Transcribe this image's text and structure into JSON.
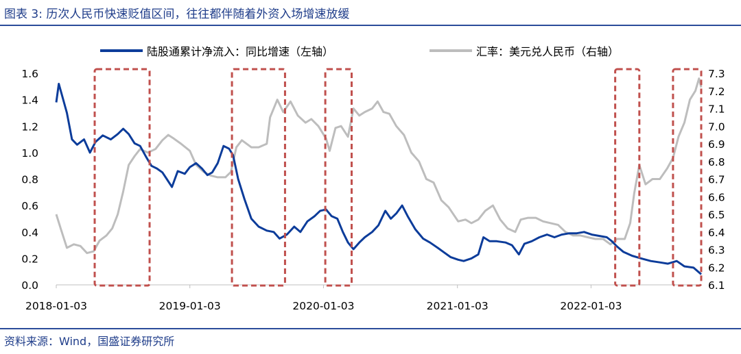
{
  "figure": {
    "title": "图表 3:  历次人民币快速贬值区间，往往都伴随着外资入场增速放缓",
    "source": "资料来源：Wind，国盛证券研究所"
  },
  "colors": {
    "series_1": "#0c3c9a",
    "series_2": "#bdbdbd",
    "highlight_box": "#c0504d",
    "rule": "#2a4c9a"
  },
  "chart_data": {
    "type": "line",
    "x_tick_labels": [
      "2018-01-03",
      "2019-01-03",
      "2020-01-03",
      "2021-01-03",
      "2022-01-03"
    ],
    "x_range": [
      "2018-01-03",
      "2022-10-31"
    ],
    "y_left": {
      "range": [
        0.0,
        1.6
      ],
      "ticks": [
        "0.0",
        "0.2",
        "0.4",
        "0.6",
        "0.8",
        "1.0",
        "1.2",
        "1.4",
        "1.6"
      ]
    },
    "y_right": {
      "range": [
        6.1,
        7.3
      ],
      "ticks": [
        "6.1",
        "6.2",
        "6.3",
        "6.4",
        "6.5",
        "6.6",
        "6.7",
        "6.8",
        "6.9",
        "7.0",
        "7.1",
        "7.2",
        "7.3"
      ]
    },
    "grid": false,
    "legend_position": "top",
    "series": [
      {
        "name": "陆股通累计净流入：同比增速（左轴）",
        "axis": "left",
        "points": [
          [
            "2018-01-03",
            1.38
          ],
          [
            "2018-01-10",
            1.52
          ],
          [
            "2018-01-17",
            1.45
          ],
          [
            "2018-02-01",
            1.3
          ],
          [
            "2018-02-15",
            1.1
          ],
          [
            "2018-03-01",
            1.06
          ],
          [
            "2018-03-20",
            1.1
          ],
          [
            "2018-04-05",
            1.0
          ],
          [
            "2018-04-20",
            1.08
          ],
          [
            "2018-05-10",
            1.13
          ],
          [
            "2018-06-01",
            1.1
          ],
          [
            "2018-06-20",
            1.14
          ],
          [
            "2018-07-05",
            1.18
          ],
          [
            "2018-07-20",
            1.14
          ],
          [
            "2018-08-05",
            1.07
          ],
          [
            "2018-08-20",
            1.05
          ],
          [
            "2018-09-05",
            0.97
          ],
          [
            "2018-09-20",
            0.9
          ],
          [
            "2018-10-05",
            0.88
          ],
          [
            "2018-10-20",
            0.85
          ],
          [
            "2018-11-01",
            0.8
          ],
          [
            "2018-11-15",
            0.74
          ],
          [
            "2018-12-01",
            0.86
          ],
          [
            "2018-12-20",
            0.84
          ],
          [
            "2019-01-03",
            0.89
          ],
          [
            "2019-01-20",
            0.92
          ],
          [
            "2019-02-05",
            0.88
          ],
          [
            "2019-02-20",
            0.83
          ],
          [
            "2019-03-05",
            0.85
          ],
          [
            "2019-03-20",
            0.92
          ],
          [
            "2019-04-05",
            1.05
          ],
          [
            "2019-04-20",
            1.03
          ],
          [
            "2019-05-01",
            0.98
          ],
          [
            "2019-05-15",
            0.8
          ],
          [
            "2019-06-01",
            0.65
          ],
          [
            "2019-06-20",
            0.5
          ],
          [
            "2019-07-10",
            0.44
          ],
          [
            "2019-08-01",
            0.41
          ],
          [
            "2019-08-20",
            0.4
          ],
          [
            "2019-09-05",
            0.35
          ],
          [
            "2019-09-25",
            0.38
          ],
          [
            "2019-10-15",
            0.44
          ],
          [
            "2019-11-01",
            0.4
          ],
          [
            "2019-11-20",
            0.48
          ],
          [
            "2019-12-10",
            0.52
          ],
          [
            "2019-12-25",
            0.56
          ],
          [
            "2020-01-10",
            0.57
          ],
          [
            "2020-01-25",
            0.52
          ],
          [
            "2020-02-10",
            0.5
          ],
          [
            "2020-02-25",
            0.4
          ],
          [
            "2020-03-10",
            0.32
          ],
          [
            "2020-03-25",
            0.27
          ],
          [
            "2020-04-10",
            0.32
          ],
          [
            "2020-04-25",
            0.36
          ],
          [
            "2020-05-15",
            0.4
          ],
          [
            "2020-06-01",
            0.45
          ],
          [
            "2020-06-20",
            0.56
          ],
          [
            "2020-07-05",
            0.5
          ],
          [
            "2020-07-20",
            0.54
          ],
          [
            "2020-08-05",
            0.6
          ],
          [
            "2020-08-20",
            0.52
          ],
          [
            "2020-09-10",
            0.42
          ],
          [
            "2020-10-01",
            0.35
          ],
          [
            "2020-10-20",
            0.32
          ],
          [
            "2020-11-10",
            0.28
          ],
          [
            "2020-11-25",
            0.25
          ],
          [
            "2020-12-15",
            0.21
          ],
          [
            "2021-01-05",
            0.19
          ],
          [
            "2021-01-20",
            0.18
          ],
          [
            "2021-02-10",
            0.2
          ],
          [
            "2021-03-01",
            0.23
          ],
          [
            "2021-03-15",
            0.36
          ],
          [
            "2021-04-01",
            0.33
          ],
          [
            "2021-04-20",
            0.33
          ],
          [
            "2021-05-15",
            0.32
          ],
          [
            "2021-06-01",
            0.3
          ],
          [
            "2021-06-20",
            0.23
          ],
          [
            "2021-07-05",
            0.31
          ],
          [
            "2021-07-25",
            0.33
          ],
          [
            "2021-08-15",
            0.36
          ],
          [
            "2021-09-05",
            0.38
          ],
          [
            "2021-09-25",
            0.36
          ],
          [
            "2021-10-15",
            0.38
          ],
          [
            "2021-11-05",
            0.39
          ],
          [
            "2021-11-25",
            0.39
          ],
          [
            "2021-12-15",
            0.4
          ],
          [
            "2022-01-05",
            0.38
          ],
          [
            "2022-01-25",
            0.37
          ],
          [
            "2022-02-15",
            0.36
          ],
          [
            "2022-03-01",
            0.33
          ],
          [
            "2022-03-15",
            0.29
          ],
          [
            "2022-04-01",
            0.25
          ],
          [
            "2022-04-25",
            0.22
          ],
          [
            "2022-05-20",
            0.2
          ],
          [
            "2022-06-15",
            0.18
          ],
          [
            "2022-07-10",
            0.17
          ],
          [
            "2022-08-01",
            0.16
          ],
          [
            "2022-08-25",
            0.18
          ],
          [
            "2022-09-15",
            0.14
          ],
          [
            "2022-10-10",
            0.13
          ],
          [
            "2022-10-31",
            0.08
          ]
        ]
      },
      {
        "name": "汇率：美元兑人民币（右轴）",
        "axis": "right",
        "points": [
          [
            "2018-01-03",
            6.5
          ],
          [
            "2018-01-15",
            6.42
          ],
          [
            "2018-02-01",
            6.31
          ],
          [
            "2018-02-20",
            6.33
          ],
          [
            "2018-03-10",
            6.32
          ],
          [
            "2018-03-28",
            6.28
          ],
          [
            "2018-04-15",
            6.29
          ],
          [
            "2018-05-01",
            6.35
          ],
          [
            "2018-05-20",
            6.38
          ],
          [
            "2018-06-05",
            6.42
          ],
          [
            "2018-06-20",
            6.5
          ],
          [
            "2018-07-05",
            6.63
          ],
          [
            "2018-07-20",
            6.78
          ],
          [
            "2018-08-05",
            6.83
          ],
          [
            "2018-08-20",
            6.87
          ],
          [
            "2018-09-10",
            6.85
          ],
          [
            "2018-10-01",
            6.87
          ],
          [
            "2018-10-20",
            6.92
          ],
          [
            "2018-11-05",
            6.95
          ],
          [
            "2018-11-20",
            6.93
          ],
          [
            "2018-12-10",
            6.9
          ],
          [
            "2019-01-03",
            6.86
          ],
          [
            "2019-01-20",
            6.78
          ],
          [
            "2019-02-10",
            6.74
          ],
          [
            "2019-03-01",
            6.72
          ],
          [
            "2019-03-20",
            6.71
          ],
          [
            "2019-04-10",
            6.71
          ],
          [
            "2019-04-25",
            6.74
          ],
          [
            "2019-05-10",
            6.88
          ],
          [
            "2019-05-25",
            6.92
          ],
          [
            "2019-06-20",
            6.88
          ],
          [
            "2019-07-10",
            6.88
          ],
          [
            "2019-08-01",
            6.9
          ],
          [
            "2019-08-10",
            7.05
          ],
          [
            "2019-08-30",
            7.15
          ],
          [
            "2019-09-15",
            7.08
          ],
          [
            "2019-10-05",
            7.14
          ],
          [
            "2019-10-25",
            7.06
          ],
          [
            "2019-11-15",
            7.02
          ],
          [
            "2019-12-01",
            7.04
          ],
          [
            "2019-12-20",
            7.0
          ],
          [
            "2020-01-10",
            6.93
          ],
          [
            "2020-01-20",
            6.86
          ],
          [
            "2020-02-05",
            6.99
          ],
          [
            "2020-02-20",
            7.0
          ],
          [
            "2020-03-10",
            6.94
          ],
          [
            "2020-03-25",
            7.1
          ],
          [
            "2020-04-10",
            7.06
          ],
          [
            "2020-04-25",
            7.08
          ],
          [
            "2020-05-15",
            7.1
          ],
          [
            "2020-05-30",
            7.14
          ],
          [
            "2020-06-15",
            7.08
          ],
          [
            "2020-07-01",
            7.07
          ],
          [
            "2020-07-20",
            7.0
          ],
          [
            "2020-08-10",
            6.95
          ],
          [
            "2020-08-30",
            6.85
          ],
          [
            "2020-09-20",
            6.8
          ],
          [
            "2020-10-10",
            6.7
          ],
          [
            "2020-10-30",
            6.68
          ],
          [
            "2020-11-20",
            6.58
          ],
          [
            "2020-12-10",
            6.54
          ],
          [
            "2021-01-05",
            6.46
          ],
          [
            "2021-01-25",
            6.47
          ],
          [
            "2021-02-10",
            6.45
          ],
          [
            "2021-03-01",
            6.47
          ],
          [
            "2021-03-20",
            6.52
          ],
          [
            "2021-04-10",
            6.55
          ],
          [
            "2021-04-30",
            6.47
          ],
          [
            "2021-05-20",
            6.42
          ],
          [
            "2021-06-10",
            6.4
          ],
          [
            "2021-06-25",
            6.47
          ],
          [
            "2021-07-15",
            6.48
          ],
          [
            "2021-08-05",
            6.48
          ],
          [
            "2021-08-25",
            6.46
          ],
          [
            "2021-09-15",
            6.45
          ],
          [
            "2021-10-05",
            6.44
          ],
          [
            "2021-10-25",
            6.4
          ],
          [
            "2021-11-15",
            6.38
          ],
          [
            "2021-12-05",
            6.38
          ],
          [
            "2021-12-25",
            6.37
          ],
          [
            "2022-01-15",
            6.36
          ],
          [
            "2022-02-05",
            6.36
          ],
          [
            "2022-02-25",
            6.33
          ],
          [
            "2022-03-15",
            6.36
          ],
          [
            "2022-04-05",
            6.36
          ],
          [
            "2022-04-20",
            6.45
          ],
          [
            "2022-05-01",
            6.62
          ],
          [
            "2022-05-15",
            6.78
          ],
          [
            "2022-06-01",
            6.67
          ],
          [
            "2022-06-20",
            6.7
          ],
          [
            "2022-07-10",
            6.7
          ],
          [
            "2022-07-30",
            6.76
          ],
          [
            "2022-08-15",
            6.82
          ],
          [
            "2022-08-30",
            6.94
          ],
          [
            "2022-09-15",
            7.02
          ],
          [
            "2022-09-30",
            7.15
          ],
          [
            "2022-10-15",
            7.2
          ],
          [
            "2022-10-25",
            7.27
          ],
          [
            "2022-10-31",
            7.22
          ]
        ]
      }
    ],
    "highlight_ranges": [
      [
        "2018-04-18",
        "2018-09-15"
      ],
      [
        "2019-04-28",
        "2019-09-20"
      ],
      [
        "2020-01-08",
        "2020-03-20"
      ],
      [
        "2022-03-10",
        "2022-05-15"
      ],
      [
        "2022-08-15",
        "2022-10-31"
      ]
    ]
  }
}
